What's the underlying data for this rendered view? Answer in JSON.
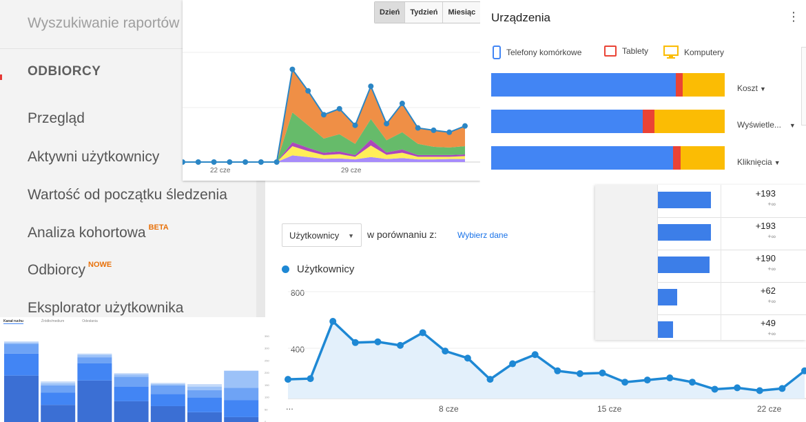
{
  "nav": {
    "search_placeholder": "Wyszukiwanie raportów",
    "section_title": "ODBIORCY",
    "items": [
      {
        "label": "Przegląd"
      },
      {
        "label": "Aktywni użytkownicy"
      },
      {
        "label": "Wartość od początku śledzenia"
      },
      {
        "label": "Analiza kohortowa",
        "badge": "BETA"
      },
      {
        "label": "Odbiorcy",
        "badge": "NOWE"
      },
      {
        "label": "Eksplorator użytkownika"
      }
    ],
    "badge_color": "#e8710a"
  },
  "top_chart": {
    "granularity": {
      "options": [
        "Dzień",
        "Tydzień",
        "Miesiąc"
      ],
      "selected": "Dzień"
    },
    "x_labels": [
      "22 cze",
      "29 cze"
    ],
    "chart_data": {
      "type": "area",
      "stacked": true,
      "x_tick_labels": [
        "22 cze",
        "29 cze"
      ],
      "series_colors": [
        "#a78bfa",
        "#ffee58",
        "#ab47bc",
        "#66bb6a",
        "#ef8f46"
      ],
      "totals_line_color": "#2b86c5",
      "series": [
        {
          "values": [
            0,
            0,
            0,
            0,
            0,
            0,
            0,
            20,
            15,
            10,
            11,
            8,
            15,
            9,
            12,
            8,
            8,
            9,
            9
          ]
        },
        {
          "values": [
            0,
            0,
            0,
            0,
            0,
            0,
            0,
            28,
            18,
            11,
            13,
            8,
            35,
            13,
            16,
            8,
            8,
            7,
            9
          ]
        },
        {
          "values": [
            0,
            0,
            0,
            0,
            0,
            0,
            0,
            12,
            10,
            7,
            8,
            5,
            18,
            7,
            10,
            5,
            5,
            5,
            5
          ]
        },
        {
          "values": [
            0,
            0,
            0,
            0,
            0,
            0,
            0,
            90,
            68,
            43,
            52,
            34,
            62,
            37,
            52,
            34,
            25,
            23,
            25
          ]
        },
        {
          "values": [
            0,
            0,
            0,
            0,
            0,
            0,
            0,
            130,
            104,
            72,
            77,
            56,
            99,
            50,
            87,
            48,
            50,
            46,
            61
          ]
        }
      ]
    }
  },
  "devices": {
    "title": "Urządzenia",
    "legend": [
      {
        "label": "Telefony komórkowe",
        "color": "#4285f4",
        "icon": "smartphone-icon"
      },
      {
        "label": "Tablety",
        "color": "#ea4335",
        "icon": "tablet-icon"
      },
      {
        "label": "Komputery",
        "color": "#fbbc04",
        "icon": "desktop-icon"
      }
    ],
    "rows": [
      {
        "metric": "Koszt",
        "shares": [
          79,
          3,
          18
        ]
      },
      {
        "metric": "Wyświetle...",
        "shares": [
          65,
          5,
          30
        ]
      },
      {
        "metric": "Kliknięcia",
        "shares": [
          78,
          3,
          19
        ]
      }
    ]
  },
  "main_chart": {
    "metric_select": "Użytkownicy",
    "compare_label": "w porównaniu z:",
    "pick_data_label": "Wybierz dane",
    "legend_label": "Użytkownicy",
    "y_labels": [
      "800",
      "400"
    ],
    "x_labels": [
      "...",
      "8 cze",
      "15 cze",
      "22 cze"
    ],
    "chart_data": {
      "type": "area",
      "line_color": "#1e88d4",
      "fill_color": "#e3f0fb",
      "y_tick_labels": [
        "800",
        "400"
      ],
      "x_tick_labels": [
        "8 cze",
        "15 cze",
        "22 cze"
      ],
      "series": [
        {
          "name": "Użytkownicy",
          "values": [
            180,
            185,
            590,
            440,
            445,
            420,
            510,
            380,
            330,
            180,
            290,
            355,
            240,
            220,
            225,
            160,
            175,
            190,
            160,
            110,
            120,
            100,
            115,
            240
          ]
        }
      ]
    }
  },
  "table": {
    "rows": [
      {
        "value": "+193",
        "sub": "+∞",
        "bar": 1.0
      },
      {
        "value": "+193",
        "sub": "+∞",
        "bar": 1.0
      },
      {
        "value": "+190",
        "sub": "+∞",
        "bar": 0.98
      },
      {
        "value": "+62",
        "sub": "+∞",
        "bar": 0.37
      },
      {
        "value": "+49",
        "sub": "+∞",
        "bar": 0.29
      }
    ]
  },
  "bar_chart": {
    "tabs": [
      "Kanał ruchu",
      "Źródło/medium",
      "Odesłania"
    ],
    "y_ticks": [
      "350",
      "300",
      "250",
      "200",
      "150",
      "100",
      "50",
      "0"
    ],
    "chart_data": {
      "type": "bar",
      "stacked": true,
      "ylim": [
        0,
        350
      ],
      "colors": [
        "#3b6fd4",
        "#4285f4",
        "#6ea3f5",
        "#9cc2f8",
        "#c4daf9"
      ],
      "bars": [
        [
          190,
          90,
          40,
          5,
          5
        ],
        [
          70,
          50,
          30,
          8,
          8
        ],
        [
          170,
          70,
          25,
          10,
          5
        ],
        [
          85,
          60,
          40,
          10,
          5
        ],
        [
          65,
          50,
          35,
          6,
          4
        ],
        [
          40,
          60,
          30,
          15,
          10
        ],
        [
          20,
          70,
          50,
          70,
          0
        ]
      ]
    }
  }
}
